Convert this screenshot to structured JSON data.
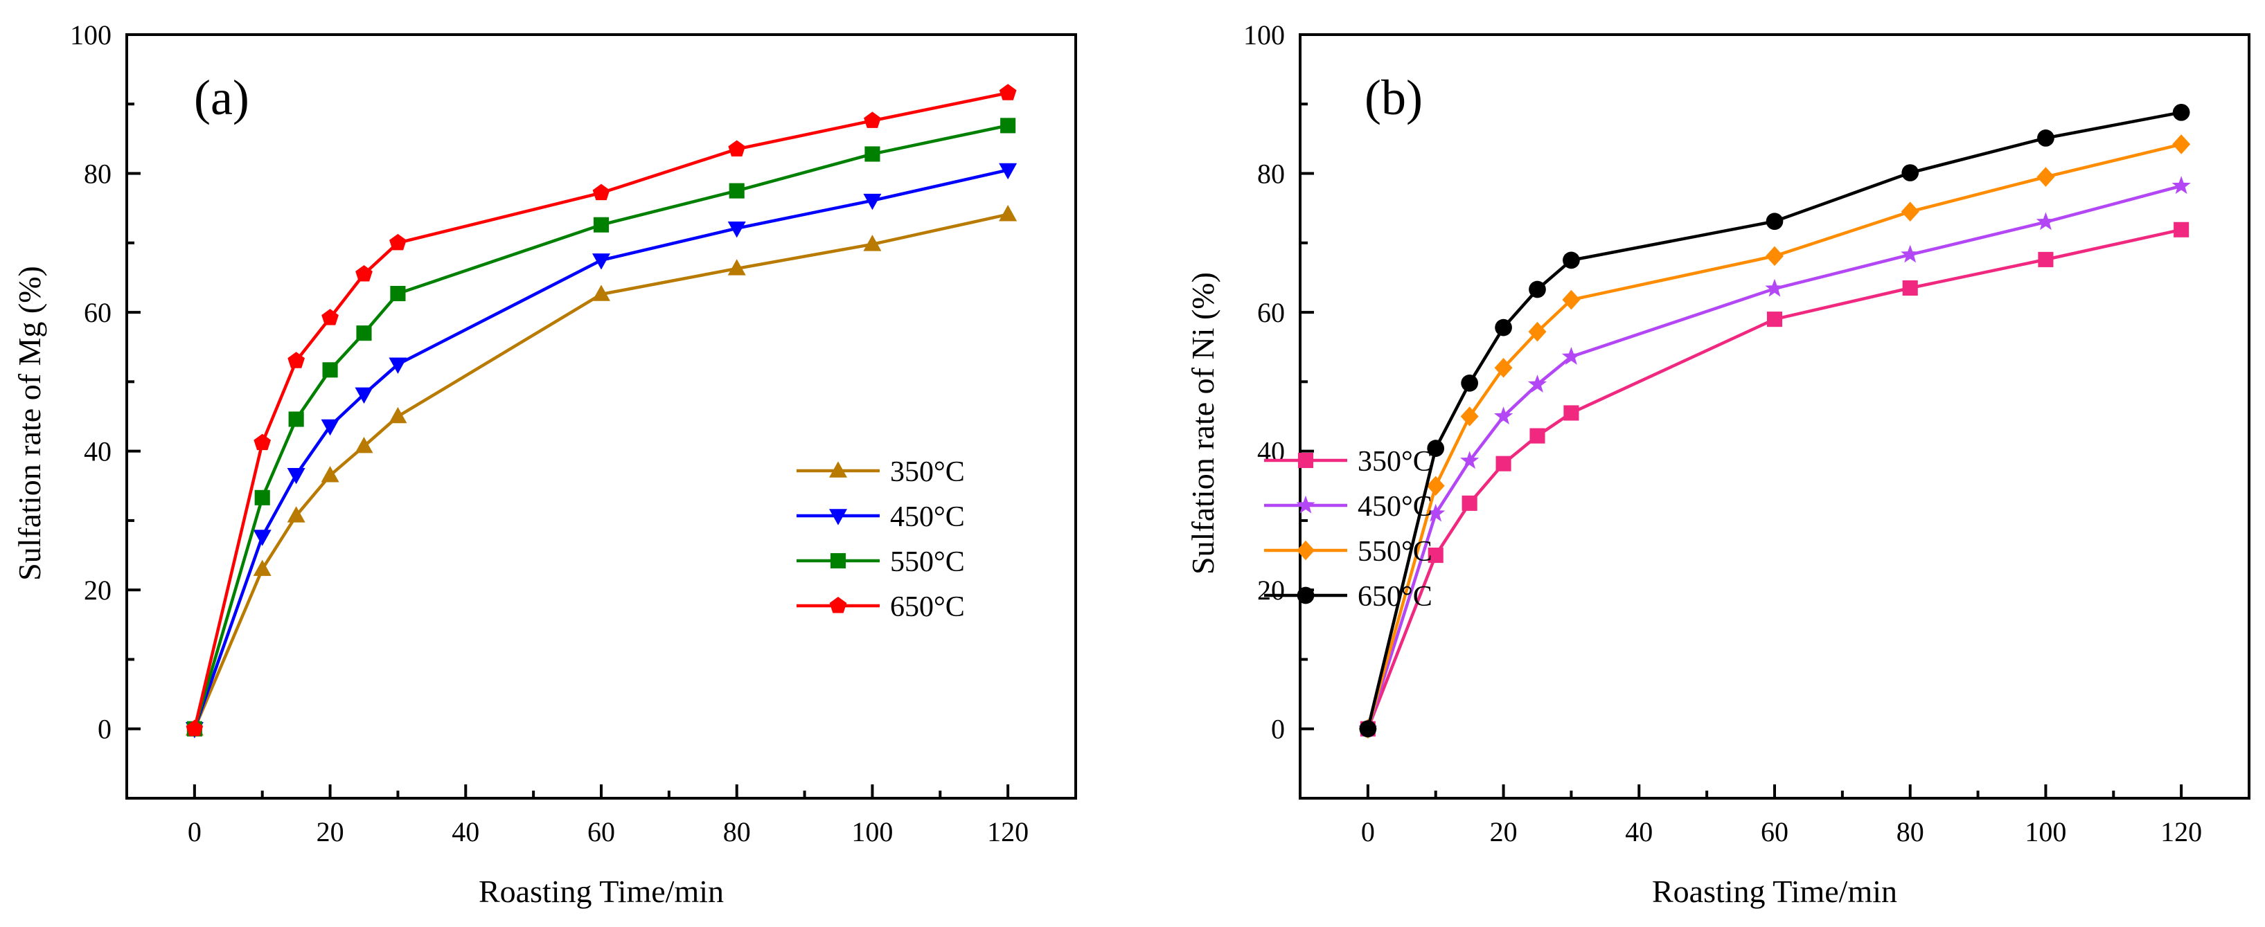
{
  "chart_data": [
    {
      "type": "line",
      "panel_label": "(a)",
      "xlabel": "Roasting Time/min",
      "ylabel": "Sulfation rate of  Mg (%)",
      "xlim": [
        -10,
        130
      ],
      "ylim": [
        -10,
        100
      ],
      "xticks": [
        0,
        20,
        40,
        60,
        80,
        100,
        120
      ],
      "yticks": [
        0,
        20,
        40,
        60,
        80,
        100
      ],
      "grid": false,
      "legend_position": "center-right",
      "x": [
        0,
        10,
        15,
        20,
        25,
        30,
        60,
        80,
        100,
        120
      ],
      "series": [
        {
          "name": "350°C",
          "color": "#b87a00",
          "marker": "triangle-up",
          "values": [
            0,
            23.0,
            30.7,
            36.5,
            40.7,
            45.0,
            62.6,
            66.3,
            69.8,
            74.1
          ]
        },
        {
          "name": "450°C",
          "color": "#0000ff",
          "marker": "triangle-down",
          "values": [
            0,
            27.7,
            36.6,
            43.6,
            48.2,
            52.5,
            67.5,
            72.1,
            76.1,
            80.5
          ]
        },
        {
          "name": "550°C",
          "color": "#008000",
          "marker": "square",
          "values": [
            0,
            33.3,
            44.6,
            51.7,
            57.0,
            62.7,
            72.6,
            77.5,
            82.8,
            86.9
          ]
        },
        {
          "name": "650°C",
          "color": "#ff0000",
          "marker": "pentagon",
          "values": [
            0,
            41.2,
            53.0,
            59.2,
            65.5,
            70.0,
            77.2,
            83.5,
            87.6,
            91.6
          ]
        }
      ]
    },
    {
      "type": "line",
      "panel_label": "(b)",
      "xlabel": "Roasting Time/min",
      "ylabel": "Sulfation rate of  Ni (%)",
      "xlim": [
        -10,
        130
      ],
      "ylim": [
        -10,
        100
      ],
      "xticks": [
        0,
        20,
        40,
        60,
        80,
        100,
        120
      ],
      "yticks": [
        0,
        20,
        40,
        60,
        80,
        100
      ],
      "grid": false,
      "legend_position": "center-right",
      "x": [
        0,
        10,
        15,
        20,
        25,
        30,
        60,
        80,
        100,
        120
      ],
      "series": [
        {
          "name": "350°C",
          "color": "#f0287f",
          "marker": "square",
          "values": [
            0,
            25.0,
            32.5,
            38.2,
            42.2,
            45.5,
            59.0,
            63.5,
            67.6,
            71.9
          ]
        },
        {
          "name": "450°C",
          "color": "#b347f5",
          "marker": "star",
          "values": [
            0,
            31.0,
            38.6,
            45.0,
            49.6,
            53.6,
            63.4,
            68.3,
            73.0,
            78.2
          ]
        },
        {
          "name": "550°C",
          "color": "#ff8c00",
          "marker": "diamond",
          "values": [
            0,
            35.0,
            45.0,
            52.0,
            57.2,
            61.8,
            68.1,
            74.5,
            79.5,
            84.2
          ]
        },
        {
          "name": "650°C",
          "color": "#000000",
          "marker": "circle",
          "values": [
            0,
            40.4,
            49.8,
            57.8,
            63.3,
            67.5,
            73.1,
            80.1,
            85.1,
            88.8
          ]
        }
      ]
    }
  ]
}
